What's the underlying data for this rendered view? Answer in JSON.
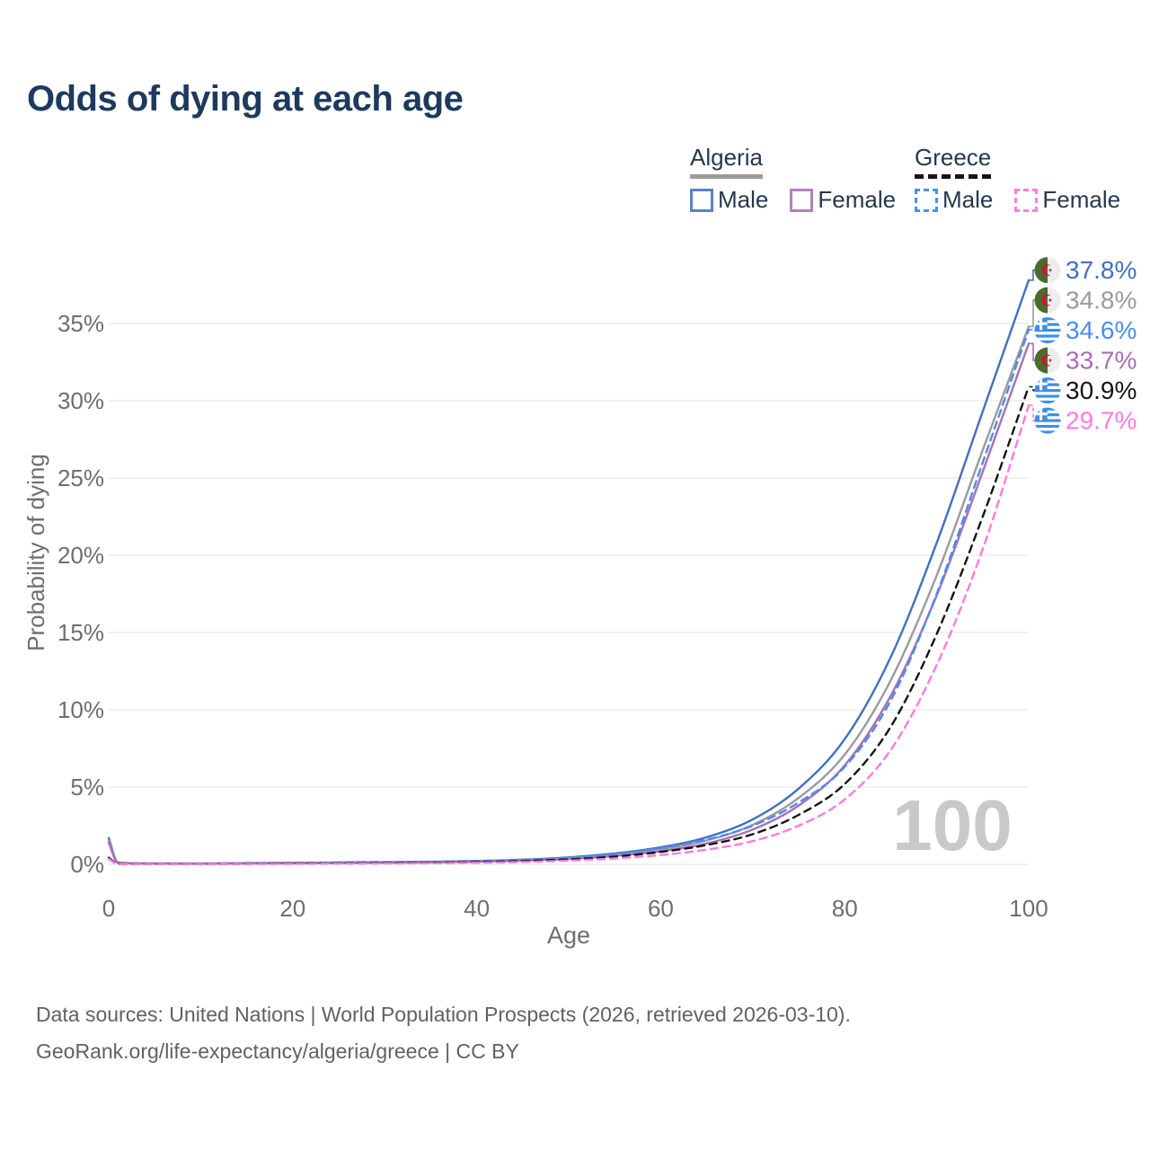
{
  "page": {
    "title": "Odds of dying at each age"
  },
  "legend": {
    "groups": [
      {
        "country": "Algeria",
        "line_style": "solid",
        "line_color": "#9b9b9b",
        "items": [
          {
            "label": "Male",
            "color": "#5b82c6",
            "dashed": false
          },
          {
            "label": "Female",
            "color": "#b47fc0",
            "dashed": false
          }
        ]
      },
      {
        "country": "Greece",
        "line_style": "dashed",
        "line_color": "#141414",
        "items": [
          {
            "label": "Male",
            "color": "#4d8df2",
            "dashed": true
          },
          {
            "label": "Female",
            "color": "#ff7ce0",
            "dashed": true
          }
        ]
      }
    ]
  },
  "footer": {
    "line1": "Data sources: United Nations | World Population Prospects (2026, retrieved 2026-03-10).",
    "line2": "GeoRank.org/life-expectancy/algeria/greece | CC BY"
  },
  "chart_data": {
    "type": "line",
    "title": "Odds of dying at each age",
    "xlabel": "Age",
    "ylabel": "Probability of dying",
    "xlim": [
      0,
      100
    ],
    "ylim": [
      0,
      38.5
    ],
    "grid": true,
    "legend_position": "top-right",
    "watermark": "100",
    "x_ticks": [
      {
        "value": 0,
        "label": "0"
      },
      {
        "value": 20,
        "label": "20"
      },
      {
        "value": 40,
        "label": "40"
      },
      {
        "value": 60,
        "label": "60"
      },
      {
        "value": 80,
        "label": "80"
      },
      {
        "value": 100,
        "label": "100"
      }
    ],
    "y_ticks": [
      {
        "value": 0,
        "label": "0%"
      },
      {
        "value": 5,
        "label": "5%"
      },
      {
        "value": 10,
        "label": "10%"
      },
      {
        "value": 15,
        "label": "15%"
      },
      {
        "value": 20,
        "label": "20%"
      },
      {
        "value": 25,
        "label": "25%"
      },
      {
        "value": 30,
        "label": "30%"
      },
      {
        "value": 35,
        "label": "35%"
      }
    ],
    "x": [
      0,
      1,
      5,
      10,
      15,
      20,
      25,
      30,
      35,
      40,
      45,
      50,
      55,
      60,
      65,
      70,
      75,
      80,
      85,
      90,
      95,
      100
    ],
    "series": [
      {
        "name": "Algeria Male",
        "country": "Algeria",
        "sex": "Male",
        "flag": "algeria",
        "color": "#416fc3",
        "dashed": false,
        "end_label": "37.8%",
        "values": [
          1.7,
          0.12,
          0.05,
          0.05,
          0.08,
          0.1,
          0.12,
          0.14,
          0.17,
          0.22,
          0.3,
          0.45,
          0.7,
          1.1,
          1.75,
          2.9,
          4.9,
          8.1,
          13.4,
          20.8,
          29.3,
          37.8
        ]
      },
      {
        "name": "Algeria",
        "country": "Algeria",
        "sex": "Both",
        "flag": "algeria",
        "color": "#9b9b9b",
        "dashed": false,
        "end_label": "34.8%",
        "values": [
          1.55,
          0.11,
          0.05,
          0.04,
          0.07,
          0.09,
          0.1,
          0.12,
          0.15,
          0.2,
          0.27,
          0.4,
          0.62,
          0.97,
          1.55,
          2.55,
          4.3,
          7.1,
          11.9,
          18.7,
          26.8,
          34.8
        ]
      },
      {
        "name": "Algeria Female",
        "country": "Algeria",
        "sex": "Female",
        "flag": "algeria",
        "color": "#a96fb2",
        "dashed": false,
        "end_label": "33.7%",
        "values": [
          1.4,
          0.1,
          0.04,
          0.04,
          0.05,
          0.06,
          0.08,
          0.1,
          0.13,
          0.17,
          0.24,
          0.35,
          0.55,
          0.85,
          1.35,
          2.25,
          3.8,
          6.4,
          10.9,
          17.4,
          25.4,
          33.7
        ]
      },
      {
        "name": "Greece Male",
        "country": "Greece",
        "sex": "Male",
        "flag": "greece",
        "color": "#4b8bf0",
        "dashed": true,
        "end_label": "34.6%",
        "values": [
          0.45,
          0.03,
          0.02,
          0.02,
          0.04,
          0.06,
          0.08,
          0.1,
          0.13,
          0.18,
          0.28,
          0.42,
          0.65,
          1.05,
          1.6,
          2.5,
          4.0,
          6.3,
          10.6,
          17.5,
          26.0,
          34.6
        ]
      },
      {
        "name": "Greece",
        "country": "Greece",
        "sex": "Both",
        "flag": "greece",
        "color": "#141414",
        "dashed": true,
        "end_label": "30.9%",
        "values": [
          0.4,
          0.03,
          0.02,
          0.02,
          0.03,
          0.05,
          0.06,
          0.08,
          0.1,
          0.14,
          0.21,
          0.32,
          0.5,
          0.8,
          1.25,
          1.95,
          3.2,
          5.2,
          8.9,
          14.9,
          22.5,
          30.9
        ]
      },
      {
        "name": "Greece Female",
        "country": "Greece",
        "sex": "Female",
        "flag": "greece",
        "color": "#ff7ade",
        "dashed": true,
        "end_label": "29.7%",
        "values": [
          0.35,
          0.02,
          0.01,
          0.01,
          0.02,
          0.03,
          0.04,
          0.05,
          0.07,
          0.1,
          0.15,
          0.24,
          0.38,
          0.6,
          0.95,
          1.5,
          2.5,
          4.2,
          7.4,
          12.9,
          20.4,
          29.7
        ]
      }
    ]
  }
}
